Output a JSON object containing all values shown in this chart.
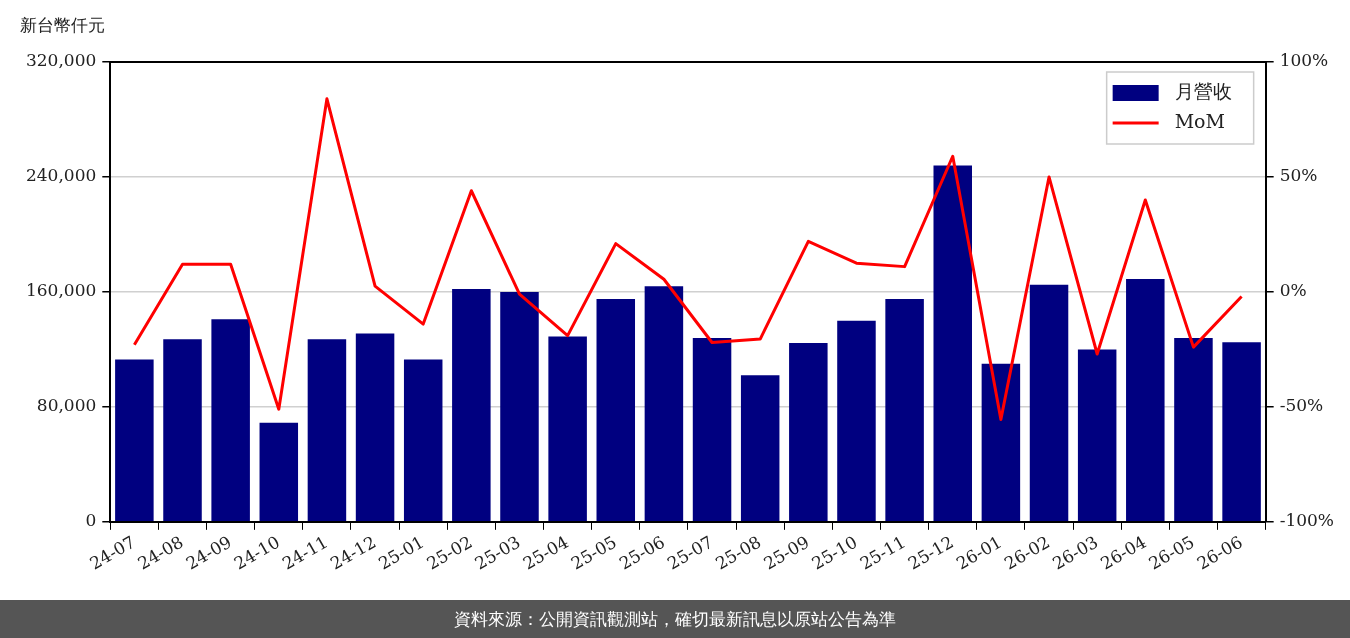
{
  "chart_data": {
    "type": "bar",
    "ylabel": "新台幣仟元",
    "categories": [
      "24-07",
      "24-08",
      "24-09",
      "24-10",
      "24-11",
      "24-12",
      "25-01",
      "25-02",
      "25-03",
      "25-04",
      "25-05",
      "25-06",
      "25-07",
      "25-08",
      "25-09",
      "25-10",
      "25-11",
      "25-12",
      "26-01",
      "26-02",
      "26-03",
      "26-04",
      "26-05",
      "26-06"
    ],
    "series": [
      {
        "name": "月營收",
        "color": "#000080",
        "values": [
          113000,
          127000,
          141000,
          69000,
          127000,
          131000,
          113000,
          162000,
          160000,
          129000,
          155000,
          164000,
          128000,
          102000,
          124500,
          140000,
          155000,
          248000,
          110000,
          165000,
          120000,
          169000,
          128000,
          125000
        ]
      },
      {
        "name": "MoM",
        "type": "line",
        "axis": "y2",
        "color": "#ff0000",
        "values": [
          -23,
          12,
          12,
          -51,
          84,
          2.5,
          -14,
          44,
          -1,
          -19,
          21,
          5.5,
          -22,
          -20.5,
          22,
          12.5,
          11,
          59,
          -55.5,
          50,
          -27,
          40,
          -24,
          -2
        ]
      }
    ],
    "ylim": [
      0,
      320000
    ],
    "yticks": [
      {
        "value": 0,
        "label": "0"
      },
      {
        "value": 80000,
        "label": "80,000"
      },
      {
        "value": 160000,
        "label": "160,000"
      },
      {
        "value": 240000,
        "label": "240,000"
      },
      {
        "value": 320000,
        "label": "320,000"
      }
    ],
    "y2lim": [
      -100,
      100
    ],
    "y2ticks": [
      {
        "value": -100,
        "label": "-100%"
      },
      {
        "value": -50,
        "label": "-50%"
      },
      {
        "value": 0,
        "label": "0%"
      },
      {
        "value": 50,
        "label": "50%"
      },
      {
        "value": 100,
        "label": "100%"
      }
    ],
    "grid": "y",
    "legend": "top right",
    "marker": "none",
    "line_style": "solid",
    "annotations": [
      "資料來源：公開資訊觀測站，確切最新訊息以原站公告為準"
    ]
  }
}
